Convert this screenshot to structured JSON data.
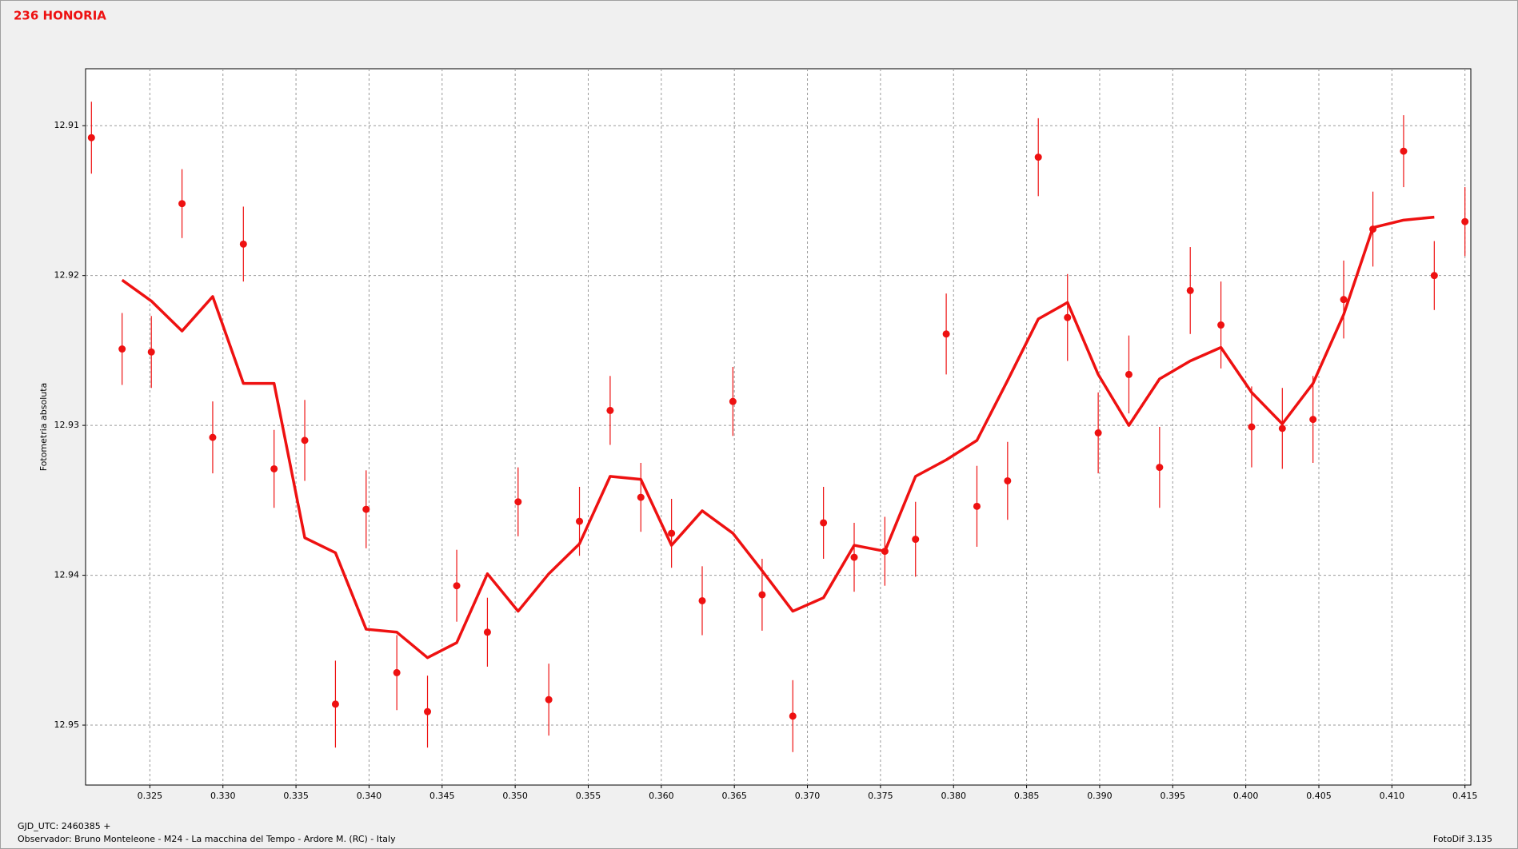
{
  "chart_data": {
    "type": "scatter",
    "title": "236 HONORIA",
    "y_label": "Fotometria absoluta",
    "footer_left": [
      "GJD_UTC: 2460385 +",
      "Observador: Bruno Monteleone - M24 - La macchina del Tempo - Ardore M. (RC) - Italy"
    ],
    "footer_right": "FotoDif 3.135",
    "x": [
      0.321,
      0.3231,
      0.3251,
      0.3272,
      0.3293,
      0.3314,
      0.3335,
      0.3356,
      0.3377,
      0.3398,
      0.3419,
      0.344,
      0.346,
      0.3481,
      0.3502,
      0.3523,
      0.3544,
      0.3565,
      0.3586,
      0.3607,
      0.3628,
      0.3649,
      0.3669,
      0.369,
      0.3711,
      0.3732,
      0.3753,
      0.3774,
      0.3795,
      0.3816,
      0.3837,
      0.3858,
      0.3878,
      0.3899,
      0.392,
      0.3941,
      0.3962,
      0.3983,
      0.4004,
      0.4025,
      0.4046,
      0.4067,
      0.4087,
      0.4108,
      0.4129,
      0.415
    ],
    "series": [
      {
        "kind": "points",
        "color": "#ee1111",
        "values": [
          12.9108,
          12.9249,
          12.9251,
          12.9152,
          12.9308,
          12.9179,
          12.9329,
          12.931,
          12.9486,
          12.9356,
          12.9465,
          12.9491,
          12.9407,
          12.9438,
          12.9351,
          12.9483,
          12.9364,
          12.929,
          12.9348,
          12.9372,
          12.9417,
          12.9284,
          12.9413,
          12.9494,
          12.9365,
          12.9388,
          12.9384,
          12.9376,
          12.9239,
          12.9354,
          12.9337,
          12.9121,
          12.9228,
          12.9305,
          12.9266,
          12.9328,
          12.921,
          12.9233,
          12.9301,
          12.9302,
          12.9296,
          12.9216,
          12.9169,
          12.9117,
          12.92,
          12.9164
        ],
        "errors": [
          0.0024,
          0.0024,
          0.0024,
          0.0023,
          0.0024,
          0.0025,
          0.0026,
          0.0027,
          0.0029,
          0.0026,
          0.0025,
          0.0024,
          0.0024,
          0.0023,
          0.0023,
          0.0024,
          0.0023,
          0.0023,
          0.0023,
          0.0023,
          0.0023,
          0.0023,
          0.0024,
          0.0024,
          0.0024,
          0.0023,
          0.0023,
          0.0025,
          0.0027,
          0.0027,
          0.0026,
          0.0026,
          0.0029,
          0.0027,
          0.0026,
          0.0027,
          0.0029,
          0.0029,
          0.0027,
          0.0027,
          0.0029,
          0.0026,
          0.0025,
          0.0024,
          0.0023,
          0.0023
        ]
      },
      {
        "kind": "line",
        "color": "#ee1111",
        "values": [
          null,
          12.9203,
          12.9217,
          12.9237,
          12.9214,
          12.9272,
          12.9272,
          12.9375,
          12.9385,
          12.9436,
          12.9438,
          12.9455,
          12.9445,
          12.9399,
          12.9424,
          12.9399,
          12.9379,
          12.9334,
          12.9336,
          12.938,
          12.9357,
          12.9372,
          12.9397,
          12.9424,
          12.9415,
          12.938,
          12.9384,
          12.9334,
          12.9323,
          12.931,
          12.927,
          12.9229,
          12.9218,
          12.9266,
          12.93,
          12.9269,
          12.9257,
          12.9248,
          12.9278,
          12.9299,
          12.9272,
          12.9226,
          12.9168,
          12.9163,
          12.9161,
          null
        ]
      }
    ],
    "xlim": [
      0.3206,
      0.4154
    ],
    "ylim": [
      12.9062,
      12.954
    ],
    "y_inverted": true,
    "xticks": [
      0.325,
      {
        "value": 0.33,
        "label": "0.330"
      },
      0.335,
      {
        "value": 0.34,
        "label": "0.340"
      },
      0.345,
      {
        "value": 0.35,
        "label": "0.350"
      },
      0.355,
      {
        "value": 0.36,
        "label": "0.360"
      },
      0.365,
      {
        "value": 0.37,
        "label": "0.370"
      },
      0.375,
      {
        "value": 0.38,
        "label": "0.380"
      },
      0.385,
      {
        "value": 0.39,
        "label": "0.390"
      },
      0.395,
      {
        "value": 0.4,
        "label": "0.400"
      },
      0.405,
      {
        "value": 0.41,
        "label": "0.410"
      },
      0.415
    ],
    "yticks": [
      12.91,
      12.92,
      12.93,
      12.94,
      12.95
    ],
    "grid": true
  }
}
